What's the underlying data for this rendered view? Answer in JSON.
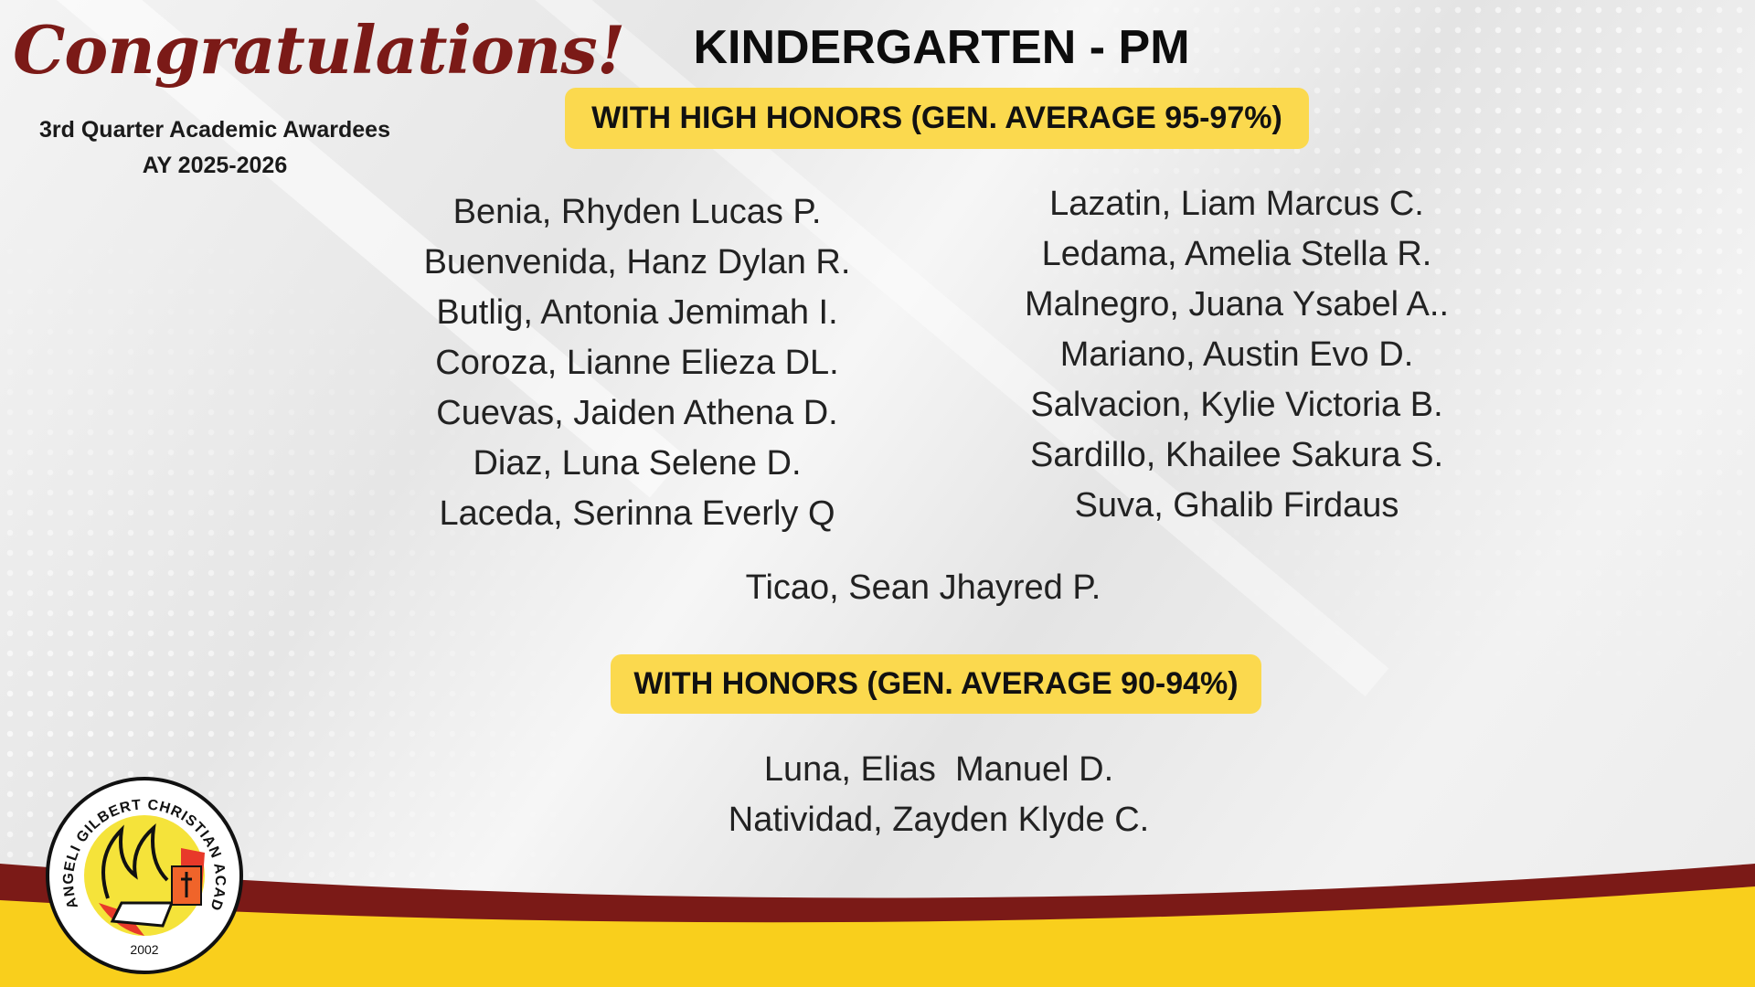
{
  "header": {
    "greeting": "Congratulations!",
    "subtitle": "3rd Quarter Academic Awardees",
    "academic_year": "AY 2025-2026",
    "title": "KINDERGARTEN - PM"
  },
  "high_honors": {
    "label": "WITH HIGH HONORS (GEN. AVERAGE 95-97%)",
    "left": [
      "Benia, Rhyden Lucas P.",
      "Buenvenida, Hanz Dylan R.",
      "Butlig, Antonia Jemimah I.",
      "Coroza, Lianne Elieza DL.",
      "Cuevas, Jaiden Athena D.",
      "Diaz, Luna Selene D.",
      "Laceda, Serinna Everly Q"
    ],
    "right": [
      "Lazatin, Liam Marcus C.",
      "Ledama, Amelia Stella R.",
      "Malnegro, Juana Ysabel A..",
      "Mariano, Austin Evo D.",
      "Salvacion, Kylie Victoria B.",
      "Sardillo, Khailee Sakura S.",
      "Suva, Ghalib Firdaus"
    ],
    "center": "Ticao, Sean Jhayred P."
  },
  "honors": {
    "label": "WITH HONORS (GEN. AVERAGE 90-94%)",
    "names": [
      "Luna, Elias  Manuel D.",
      "Natividad, Zayden Klyde C."
    ]
  },
  "logo": {
    "text": "ANGELI GILBERT CHRISTIAN ACADEMY",
    "year": "2002"
  },
  "colors": {
    "maroon": "#7b1a17",
    "yellow": "#fbd94e",
    "band_yellow": "#f9cf1c"
  }
}
